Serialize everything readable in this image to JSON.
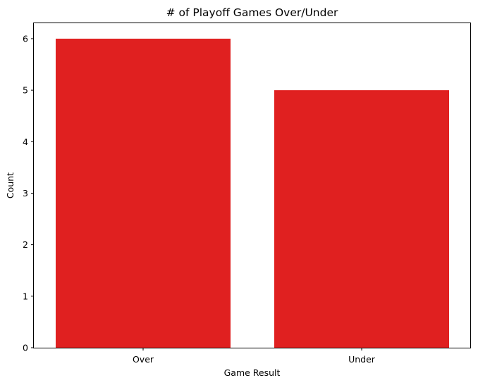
{
  "chart_data": {
    "type": "bar",
    "title": "# of Playoff Games Over/Under",
    "xlabel": "Game Result",
    "ylabel": "Count",
    "categories": [
      "Over",
      "Under"
    ],
    "values": [
      6,
      5
    ],
    "ylim": [
      0,
      6.3
    ],
    "yticks": [
      0,
      1,
      2,
      3,
      4,
      5,
      6
    ],
    "bar_color": "#e02020",
    "grid": false,
    "legend": "none"
  }
}
